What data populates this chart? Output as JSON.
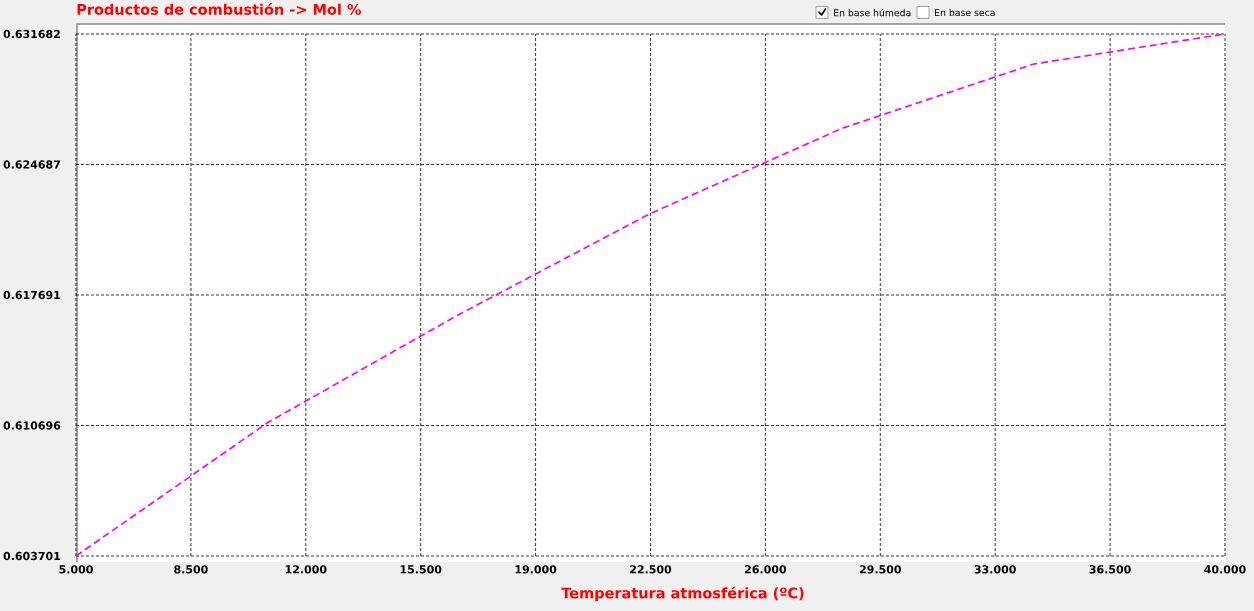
{
  "chart_data": {
    "type": "line",
    "title": "Productos de combustión -> Mol %",
    "xlabel": "Temperatura atmosférica (ºC)",
    "x": [
      5,
      10.83,
      16.67,
      22.5,
      28.33,
      34.17,
      40
    ],
    "series": [
      {
        "color": "#ff00ff",
        "values": [
          0.603701,
          0.61084,
          0.61665,
          0.62206,
          0.62662,
          0.63007,
          0.631682
        ]
      }
    ],
    "xlim": [
      5,
      40
    ],
    "xticks": [
      {
        "value": 5,
        "label": "5.000"
      },
      {
        "value": 8.5,
        "label": "8.500"
      },
      {
        "value": 12,
        "label": "12.000"
      },
      {
        "value": 15.5,
        "label": "15.500"
      },
      {
        "value": 19,
        "label": "19.000"
      },
      {
        "value": 22.5,
        "label": "22.500"
      },
      {
        "value": 26,
        "label": "26.000"
      },
      {
        "value": 29.5,
        "label": "29.500"
      },
      {
        "value": 33,
        "label": "33.000"
      },
      {
        "value": 36.5,
        "label": "36.500"
      },
      {
        "value": 40,
        "label": "40.000"
      }
    ],
    "ylim": [
      0.603701,
      0.631682
    ],
    "yticks": [
      0.603701,
      0.610696,
      0.617691,
      0.624687,
      0.631682
    ],
    "grid": true,
    "line_style": "dashed",
    "marker": "none",
    "annotations": [
      "En base húmeda",
      "En base seca"
    ]
  }
}
